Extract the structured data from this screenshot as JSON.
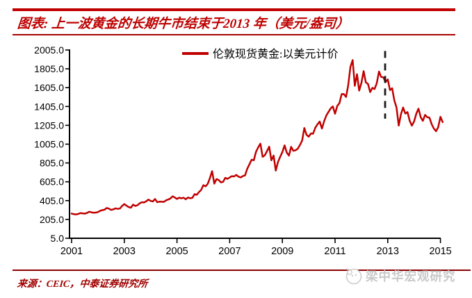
{
  "header": {
    "title": "图表: 上一波黄金的长期牛市结束于2013 年（美元/盎司）"
  },
  "footer": {
    "source": "来源：CEIC，中泰证券研究所",
    "watermark": "梁中华宏观研究"
  },
  "colors": {
    "accent_red": "#C00000",
    "rule_red": "#A80000",
    "axis_black": "#000000",
    "watermark_gray": "#c9c9c9"
  },
  "chart_data": {
    "type": "line",
    "title": "",
    "xlabel": "",
    "ylabel": "",
    "unit": "美元/盎司",
    "grid": false,
    "legend_position": "top-center",
    "x_ticks": [
      2001,
      2003,
      2005,
      2007,
      2009,
      2011,
      2013,
      2015
    ],
    "y_tick_labels": [
      "2005.0",
      "1805.0",
      "1605.0",
      "1405.0",
      "1205.0",
      "1005.0",
      "805.0",
      "605.0",
      "405.0",
      "205.0",
      "5.0"
    ],
    "ylim": [
      5,
      2005
    ],
    "xlim_years": [
      2001,
      2015.17
    ],
    "annotation": {
      "type": "dashed-vline",
      "x_year": 2012.9,
      "value_top": 1995,
      "value_bottom": 1275,
      "color": "#1a1a1a"
    },
    "x_start": {
      "year": 2001,
      "month": 1
    },
    "series": [
      {
        "name": "伦敦现货黄金:以美元计价",
        "color": "#C00000",
        "frequency": "monthly",
        "monthly_values": [
          268,
          261,
          258,
          263,
          272,
          270,
          267,
          274,
          287,
          281,
          276,
          278,
          283,
          297,
          304,
          308,
          327,
          320,
          306,
          312,
          323,
          317,
          321,
          348,
          368,
          351,
          336,
          330,
          362,
          348,
          356,
          376,
          388,
          385,
          398,
          416,
          402,
          396,
          423,
          388,
          394,
          393,
          392,
          408,
          417,
          427,
          451,
          438,
          423,
          436,
          429,
          436,
          419,
          438,
          430,
          434,
          474,
          467,
          496,
          517,
          569,
          556,
          583,
          645,
          718,
          585,
          634,
          624,
          599,
          604,
          647,
          636,
          651,
          665,
          662,
          678,
          660,
          651,
          666,
          673,
          744,
          790,
          840,
          834,
          924,
          972,
          1010,
          871,
          886,
          931,
          978,
          833,
          884,
          724,
          815,
          870,
          920,
          992,
          916,
          883,
          976,
          934,
          940,
          956,
          996,
          1041,
          1176,
          1105,
          1084,
          1119,
          1116,
          1180,
          1216,
          1245,
          1170,
          1247,
          1308,
          1347,
          1384,
          1406,
          1328,
          1412,
          1440,
          1536,
          1537,
          1506,
          1629,
          1826,
          1898,
          1625,
          1748,
          1574,
          1655,
          1781,
          1662,
          1644,
          1558,
          1603,
          1590,
          1652,
          1776,
          1719,
          1715,
          1664,
          1693,
          1580,
          1598,
          1469,
          1394,
          1202,
          1323,
          1394,
          1330,
          1346,
          1252,
          1202,
          1246,
          1329,
          1382,
          1292,
          1252,
          1316,
          1291,
          1286,
          1217,
          1171,
          1142,
          1186,
          1296,
          1238
        ]
      }
    ]
  }
}
